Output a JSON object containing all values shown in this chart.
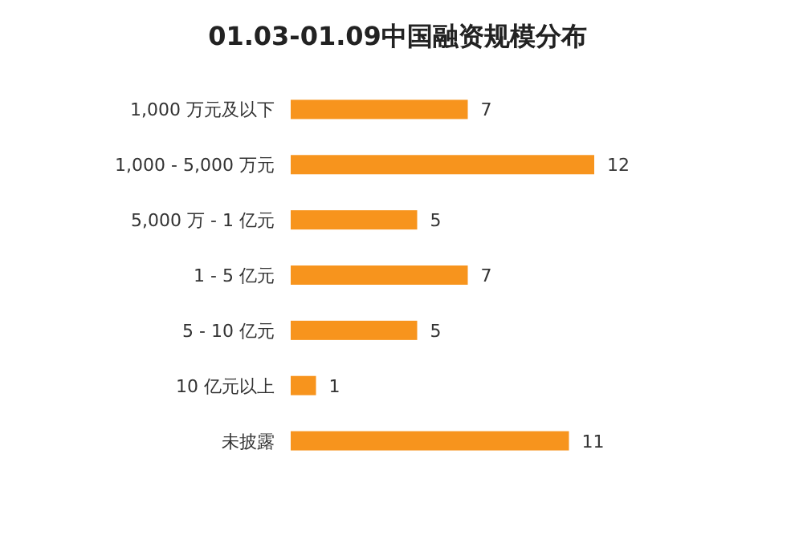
{
  "chart_data": {
    "type": "bar",
    "orientation": "horizontal",
    "title": "01.03-01.09中国融资规模分布",
    "categories": [
      "1,000 万元及以下",
      "1,000 - 5,000 万元",
      "5,000 万 - 1 亿元",
      "1 - 5 亿元",
      "5 - 10 亿元",
      "10 亿元以上",
      "未披露"
    ],
    "values": [
      7,
      12,
      5,
      7,
      5,
      1,
      11
    ],
    "color": "#f7941d",
    "data_labels": true
  }
}
